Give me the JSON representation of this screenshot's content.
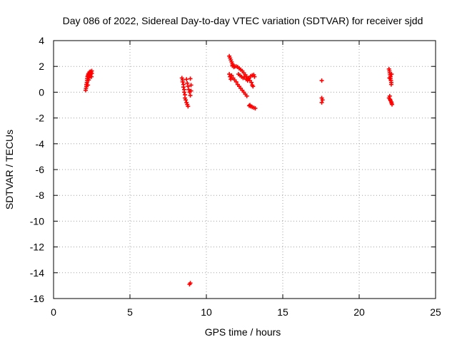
{
  "chart_data": {
    "type": "scatter",
    "title": "Day 086 of 2022, Sidereal Day-to-day VTEC variation (SDTVAR) for receiver sjdd",
    "xlabel": "GPS time / hours",
    "ylabel": "SDTVAR / TECUs",
    "xlim": [
      0,
      25
    ],
    "ylim": [
      -16,
      4
    ],
    "xticks": [
      0,
      5,
      10,
      15,
      20,
      25
    ],
    "yticks": [
      -16,
      -14,
      -12,
      -10,
      -8,
      -6,
      -4,
      -2,
      0,
      2,
      4
    ],
    "grid": true,
    "marker": "+",
    "marker_color": "#ff0000",
    "series": [
      {
        "name": "SDTVAR",
        "points": [
          [
            2.1,
            0.15
          ],
          [
            2.12,
            0.3
          ],
          [
            2.15,
            0.45
          ],
          [
            2.15,
            0.6
          ],
          [
            2.18,
            0.75
          ],
          [
            2.2,
            0.9
          ],
          [
            2.2,
            1.05
          ],
          [
            2.22,
            1.2
          ],
          [
            2.25,
            1.3
          ],
          [
            2.25,
            0.55
          ],
          [
            2.28,
            1.4
          ],
          [
            2.3,
            0.95
          ],
          [
            2.3,
            1.45
          ],
          [
            2.32,
            1.1
          ],
          [
            2.35,
            1.55
          ],
          [
            2.38,
            1.25
          ],
          [
            2.4,
            1.6
          ],
          [
            2.42,
            1.35
          ],
          [
            2.45,
            1.55
          ],
          [
            2.48,
            1.2
          ],
          [
            2.5,
            1.45
          ],
          [
            2.5,
            1.65
          ],
          [
            8.4,
            1.1
          ],
          [
            8.45,
            0.95
          ],
          [
            8.45,
            0.8
          ],
          [
            8.5,
            0.6
          ],
          [
            8.5,
            0.4
          ],
          [
            8.55,
            0.2
          ],
          [
            8.55,
            0.0
          ],
          [
            8.6,
            -0.2
          ],
          [
            8.6,
            -0.45
          ],
          [
            8.65,
            -0.6
          ],
          [
            8.7,
            -0.8
          ],
          [
            8.75,
            -0.95
          ],
          [
            8.8,
            -1.1
          ],
          [
            8.7,
            1.0
          ],
          [
            8.75,
            0.7
          ],
          [
            8.8,
            0.45
          ],
          [
            8.85,
            0.2
          ],
          [
            8.9,
            0.0
          ],
          [
            8.95,
            1.05
          ],
          [
            8.95,
            -0.25
          ],
          [
            9.0,
            0.55
          ],
          [
            9.0,
            0.1
          ],
          [
            8.9,
            -14.9
          ],
          [
            8.95,
            -14.8
          ],
          [
            11.5,
            2.8
          ],
          [
            11.55,
            2.65
          ],
          [
            11.6,
            2.5
          ],
          [
            11.65,
            2.35
          ],
          [
            11.7,
            2.2
          ],
          [
            11.75,
            2.1
          ],
          [
            11.8,
            1.95
          ],
          [
            11.7,
            2.05
          ],
          [
            11.85,
            2.0
          ],
          [
            11.95,
            2.0
          ],
          [
            12.05,
            1.95
          ],
          [
            12.15,
            1.85
          ],
          [
            12.25,
            1.75
          ],
          [
            12.35,
            1.65
          ],
          [
            12.45,
            1.5
          ],
          [
            12.55,
            1.35
          ],
          [
            12.65,
            1.2
          ],
          [
            12.75,
            1.05
          ],
          [
            12.85,
            0.9
          ],
          [
            12.95,
            0.75
          ],
          [
            13.0,
            0.55
          ],
          [
            13.05,
            0.45
          ],
          [
            11.5,
            1.4
          ],
          [
            11.55,
            1.2
          ],
          [
            11.6,
            1.0
          ],
          [
            11.65,
            1.3
          ],
          [
            11.75,
            1.1
          ],
          [
            11.85,
            0.95
          ],
          [
            11.95,
            0.8
          ],
          [
            12.05,
            0.6
          ],
          [
            12.15,
            0.45
          ],
          [
            12.25,
            0.3
          ],
          [
            12.35,
            0.15
          ],
          [
            12.45,
            0.0
          ],
          [
            12.55,
            -0.15
          ],
          [
            12.65,
            -0.3
          ],
          [
            12.1,
            1.4
          ],
          [
            12.2,
            1.3
          ],
          [
            12.3,
            1.2
          ],
          [
            12.4,
            1.1
          ],
          [
            12.5,
            1.2
          ],
          [
            12.6,
            1.0
          ],
          [
            12.7,
            0.9
          ],
          [
            12.8,
            1.1
          ],
          [
            12.9,
            1.25
          ],
          [
            13.0,
            1.3
          ],
          [
            13.1,
            1.35
          ],
          [
            13.15,
            1.2
          ],
          [
            12.8,
            -1.05
          ],
          [
            12.9,
            -1.1
          ],
          [
            13.0,
            -1.15
          ],
          [
            13.1,
            -1.2
          ],
          [
            13.2,
            -1.25
          ],
          [
            12.85,
            -1.0
          ],
          [
            17.55,
            0.9
          ],
          [
            17.55,
            -0.45
          ],
          [
            17.55,
            -0.8
          ],
          [
            17.6,
            -0.6
          ],
          [
            21.95,
            1.8
          ],
          [
            21.98,
            1.65
          ],
          [
            22.0,
            1.5
          ],
          [
            22.02,
            1.35
          ],
          [
            22.05,
            1.2
          ],
          [
            22.05,
            1.05
          ],
          [
            22.08,
            0.9
          ],
          [
            22.1,
            0.75
          ],
          [
            22.1,
            0.6
          ],
          [
            22.12,
            1.4
          ],
          [
            21.98,
            1.1
          ],
          [
            21.95,
            -0.45
          ],
          [
            22.0,
            -0.3
          ],
          [
            22.02,
            -0.55
          ],
          [
            22.05,
            -0.65
          ],
          [
            22.1,
            -0.75
          ],
          [
            22.12,
            -0.85
          ],
          [
            22.15,
            -0.95
          ]
        ]
      }
    ]
  }
}
